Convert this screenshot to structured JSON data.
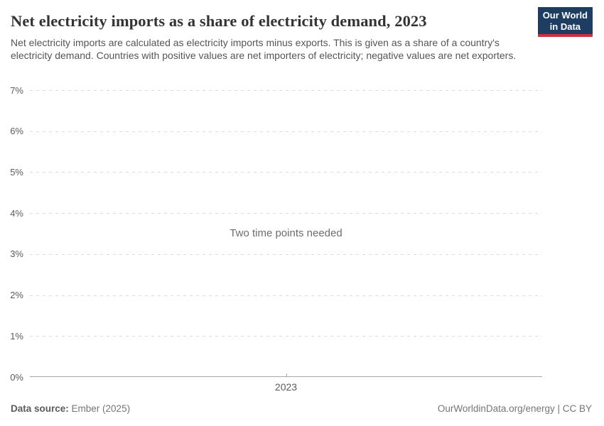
{
  "header": {
    "title": "Net electricity imports as a share of electricity demand, 2023",
    "subtitle": "Net electricity imports are calculated as electricity imports minus exports. This is given as a share of a country's electricity demand. Countries with positive values are net importers of electricity; negative values are net exporters.",
    "logo": {
      "line1": "Our World",
      "line2": "in Data"
    }
  },
  "chart_data": {
    "type": "line",
    "title": "Net electricity imports as a share of electricity demand, 2023",
    "series": [],
    "note": "Two time points needed",
    "x_ticks": [
      "2023"
    ],
    "y_ticks": [
      "0%",
      "1%",
      "2%",
      "3%",
      "4%",
      "5%",
      "6%",
      "7%"
    ],
    "ylim": [
      0,
      7
    ],
    "ylabel": "",
    "xlabel": "",
    "grid": "horizontal-dashed",
    "legend": "none"
  },
  "footer": {
    "source_label": "Data source:",
    "source_value": " Ember (2025)",
    "credit": "OurWorldinData.org/energy | CC BY"
  },
  "colors": {
    "logo_bg": "#1d3d63",
    "logo_accent": "#cf303e",
    "gridline": "#dbdbdb",
    "axis": "#a6a6a6",
    "title_text": "#333333",
    "subtitle_text": "#555555",
    "tick_text": "#5b5b5b",
    "note_text": "#6d6d6d",
    "footer_text": "#757575"
  }
}
